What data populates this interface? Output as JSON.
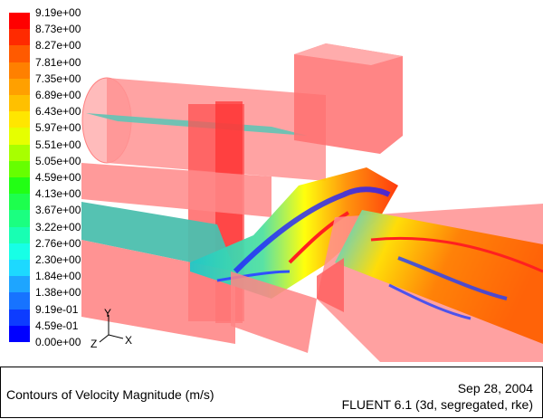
{
  "legend": {
    "colors": [
      "#0000ff",
      "#0d3cff",
      "#1773ff",
      "#1ea5ff",
      "#1dd9ff",
      "#17ffe6",
      "#18ffb3",
      "#1bff80",
      "#1dff4d",
      "#22ff14",
      "#66ff00",
      "#a8ff00",
      "#e6ff00",
      "#ffe600",
      "#ffc000",
      "#ffa000",
      "#ff8000",
      "#ff5a00",
      "#ff2a00",
      "#ff0000"
    ],
    "ticks": [
      "9.19e+00",
      "8.73e+00",
      "8.27e+00",
      "7.81e+00",
      "7.35e+00",
      "6.89e+00",
      "6.43e+00",
      "5.97e+00",
      "5.51e+00",
      "5.05e+00",
      "4.59e+00",
      "4.13e+00",
      "3.67e+00",
      "3.22e+00",
      "2.76e+00",
      "2.30e+00",
      "1.84e+00",
      "1.38e+00",
      "9.19e-01",
      "4.59e-01",
      "0.00e+00"
    ]
  },
  "axes": {
    "x": "X",
    "y": "Y",
    "z": "Z"
  },
  "caption": {
    "title": "Contours of Velocity Magnitude (m/s)",
    "date": "Sep 28, 2004",
    "software": "FLUENT 6.1 (3d, segregated, rke)"
  }
}
